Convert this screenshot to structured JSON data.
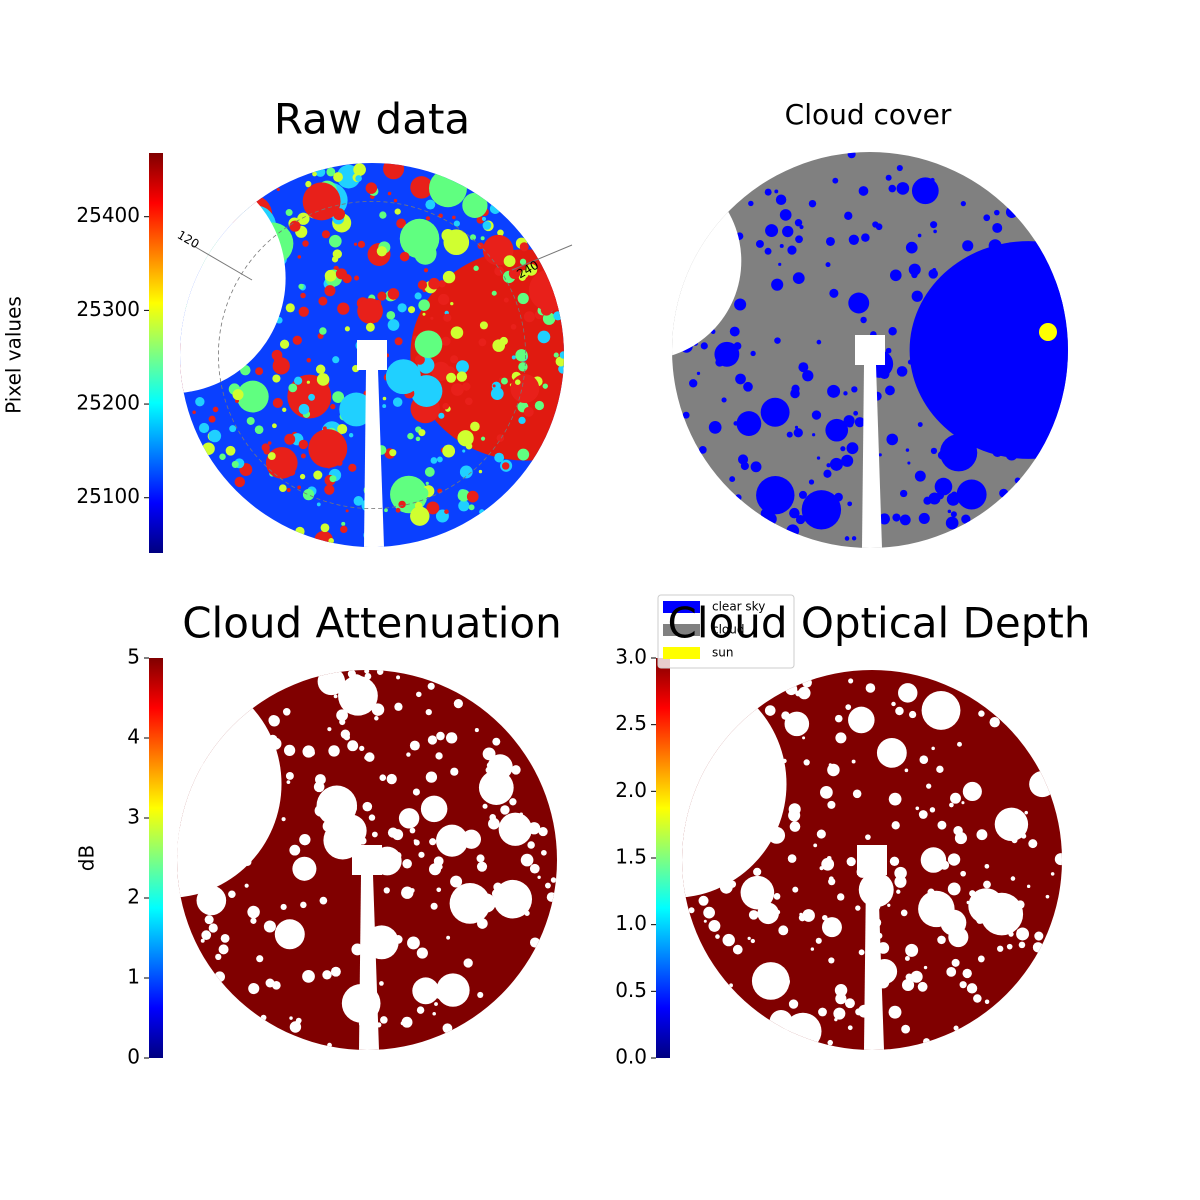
{
  "chart_data": [
    {
      "type": "image",
      "title": "Raw data",
      "colormap": "jet",
      "colorbar_label": "Pixel values",
      "clim": [
        25041,
        25468
      ],
      "cticks": [
        25100,
        25200,
        25300,
        25400
      ],
      "annotations": [
        "120",
        "240"
      ]
    },
    {
      "type": "image",
      "title": "Cloud cover",
      "legend": [
        {
          "name": "clear sky",
          "color": "#0000ff"
        },
        {
          "name": "cloud",
          "color": "#808080"
        },
        {
          "name": "sun",
          "color": "#ffff00"
        }
      ]
    },
    {
      "type": "image",
      "title": "Cloud Attenuation",
      "colormap": "jet",
      "colorbar_label": "dB",
      "clim": [
        0,
        5
      ],
      "cticks": [
        0,
        1,
        2,
        3,
        4,
        5
      ],
      "color": "#800000"
    },
    {
      "type": "image",
      "title": "Cloud Optical Depth",
      "colormap": "jet",
      "clim": [
        0,
        3
      ],
      "cticks": [
        {
          "value": 0,
          "label": "0.0"
        },
        0.5,
        {
          "value": 1,
          "label": "1.0"
        },
        1.5,
        {
          "value": 2,
          "label": "2.0"
        },
        2.5,
        {
          "value": 3,
          "label": "3.0"
        }
      ],
      "color": "#800000"
    }
  ]
}
